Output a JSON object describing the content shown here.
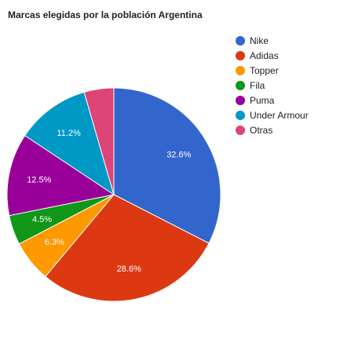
{
  "chart_data": {
    "type": "pie",
    "title": "Marcas elegidas por la población Argentina",
    "slices": [
      {
        "name": "Nike",
        "value": 32.6,
        "label": "32.6%",
        "color": "#3366cc"
      },
      {
        "name": "Adidas",
        "value": 28.6,
        "label": "28.6%",
        "color": "#dc3912"
      },
      {
        "name": "Topper",
        "value": 6.3,
        "label": "6.3%",
        "color": "#ff9900"
      },
      {
        "name": "Fila",
        "value": 4.5,
        "label": "4.5%",
        "color": "#109618"
      },
      {
        "name": "Puma",
        "value": 12.5,
        "label": "12.5%",
        "color": "#990099"
      },
      {
        "name": "Under Armour",
        "value": 11.2,
        "label": "11.2%",
        "color": "#0099c6"
      },
      {
        "name": "Otras",
        "value": 4.5,
        "label": "",
        "color": "#dd4477"
      }
    ],
    "legend_position": "right"
  }
}
